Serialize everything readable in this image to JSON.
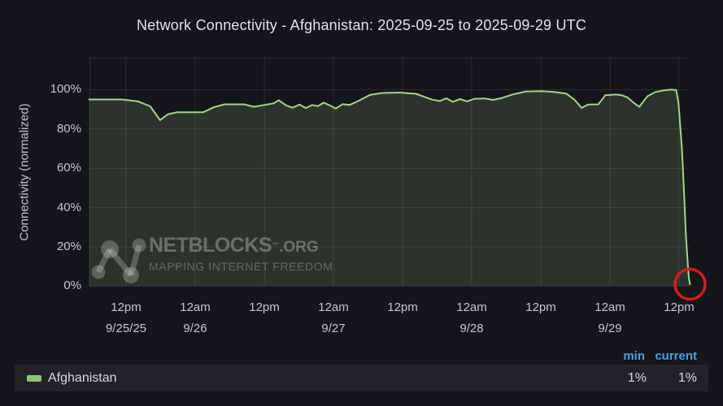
{
  "title": "Network Connectivity - Afghanistan: 2025-09-25 to 2025-09-29 UTC",
  "y_axis": {
    "label": "Connectivity (normalized)",
    "ticks": [
      "100%",
      "80%",
      "60%",
      "40%",
      "20%",
      "0%"
    ],
    "tick_pcts": [
      100,
      80,
      60,
      40,
      20,
      0
    ]
  },
  "x_axis": {
    "ticks": [
      {
        "time": "12pm",
        "date": "9/25/25"
      },
      {
        "time": "12am",
        "date": "9/26"
      },
      {
        "time": "12pm",
        "date": ""
      },
      {
        "time": "12am",
        "date": "9/27"
      },
      {
        "time": "12pm",
        "date": ""
      },
      {
        "time": "12am",
        "date": "9/28"
      },
      {
        "time": "12pm",
        "date": ""
      },
      {
        "time": "12am",
        "date": "9/29"
      },
      {
        "time": "12pm",
        "date": ""
      }
    ]
  },
  "watermark": {
    "brand": "NETBLOCKS",
    "tm": "™",
    "suffix": ".ORG",
    "tagline": "MAPPING INTERNET FREEDOM"
  },
  "legend": {
    "columns": [
      "min",
      "current"
    ],
    "series": [
      {
        "label": "Afghanistan",
        "min": "1%",
        "current": "1%",
        "color": "#90c27d"
      }
    ]
  },
  "annotation": {
    "shape": "circle",
    "color": "#d61c1c"
  },
  "colors": {
    "background": "#14161a",
    "line": "#a6d28f",
    "fill": "rgba(165,208,140,0.16)",
    "grid": "rgba(255,255,255,0.09)",
    "text": "#c6c7ca",
    "title_text": "#e2e3e5",
    "legend_header": "#45a3db",
    "legend_row_bg": "#212327",
    "annotation_red": "#d61c1c"
  },
  "chart_data": {
    "type": "area",
    "title": "Network Connectivity - Afghanistan: 2025-09-25 to 2025-09-29 UTC",
    "xlabel": "",
    "ylabel": "Connectivity (normalized)",
    "ylim": [
      0,
      116
    ],
    "grid": true,
    "legend_position": "bottom",
    "x_unit": "hours since 2025-09-25 00:00 UTC",
    "tick_hours": [
      12,
      24,
      36,
      48,
      60,
      72,
      84,
      96,
      108
    ],
    "series": [
      {
        "name": "Afghanistan",
        "min": 1,
        "current": 1,
        "points": [
          [
            5.6,
            95
          ],
          [
            11.3,
            95
          ],
          [
            14.1,
            94
          ],
          [
            16.2,
            91.5
          ],
          [
            17.9,
            84.5
          ],
          [
            19.3,
            87.5
          ],
          [
            20.9,
            88.5
          ],
          [
            25.4,
            88.5
          ],
          [
            27.2,
            91
          ],
          [
            29.1,
            92.5
          ],
          [
            32.5,
            92.5
          ],
          [
            34.2,
            91.3
          ],
          [
            35.6,
            92
          ],
          [
            37.6,
            93
          ],
          [
            38.5,
            94.6
          ],
          [
            39.8,
            92
          ],
          [
            40.9,
            90.8
          ],
          [
            42.1,
            92.4
          ],
          [
            43.2,
            90.6
          ],
          [
            44.3,
            92.2
          ],
          [
            45.3,
            91.6
          ],
          [
            46.3,
            93.4
          ],
          [
            47.3,
            92.1
          ],
          [
            48.4,
            90.4
          ],
          [
            49.6,
            92.6
          ],
          [
            50.8,
            92.2
          ],
          [
            52.4,
            94.4
          ],
          [
            54.4,
            97.4
          ],
          [
            56.5,
            98.3
          ],
          [
            59.6,
            98.5
          ],
          [
            62.3,
            97.9
          ],
          [
            63.7,
            96.4
          ],
          [
            65.1,
            94.9
          ],
          [
            66.5,
            94.2
          ],
          [
            67.6,
            95.6
          ],
          [
            68.7,
            93.8
          ],
          [
            70,
            95.2
          ],
          [
            71.2,
            94
          ],
          [
            72.4,
            95.3
          ],
          [
            74.3,
            95.5
          ],
          [
            75.7,
            94.8
          ],
          [
            77.1,
            95.6
          ],
          [
            79.2,
            97.6
          ],
          [
            81.3,
            99
          ],
          [
            84.1,
            99.2
          ],
          [
            86.3,
            98.8
          ],
          [
            88.4,
            98
          ],
          [
            89.8,
            95
          ],
          [
            91.1,
            90.7
          ],
          [
            92.2,
            92.4
          ],
          [
            94,
            92.5
          ],
          [
            95.2,
            97.2
          ],
          [
            97,
            97.5
          ],
          [
            98,
            97.2
          ],
          [
            99,
            96.1
          ],
          [
            100.1,
            93.4
          ],
          [
            101.1,
            91.3
          ],
          [
            102.5,
            96.6
          ],
          [
            103.9,
            98.8
          ],
          [
            105.3,
            99.6
          ],
          [
            106.5,
            100
          ],
          [
            107.5,
            99.8
          ],
          [
            107.9,
            93
          ],
          [
            108.5,
            70
          ],
          [
            108.9,
            45
          ],
          [
            109.2,
            25
          ],
          [
            109.5,
            12
          ],
          [
            109.7,
            4
          ],
          [
            109.9,
            1
          ]
        ]
      }
    ]
  }
}
